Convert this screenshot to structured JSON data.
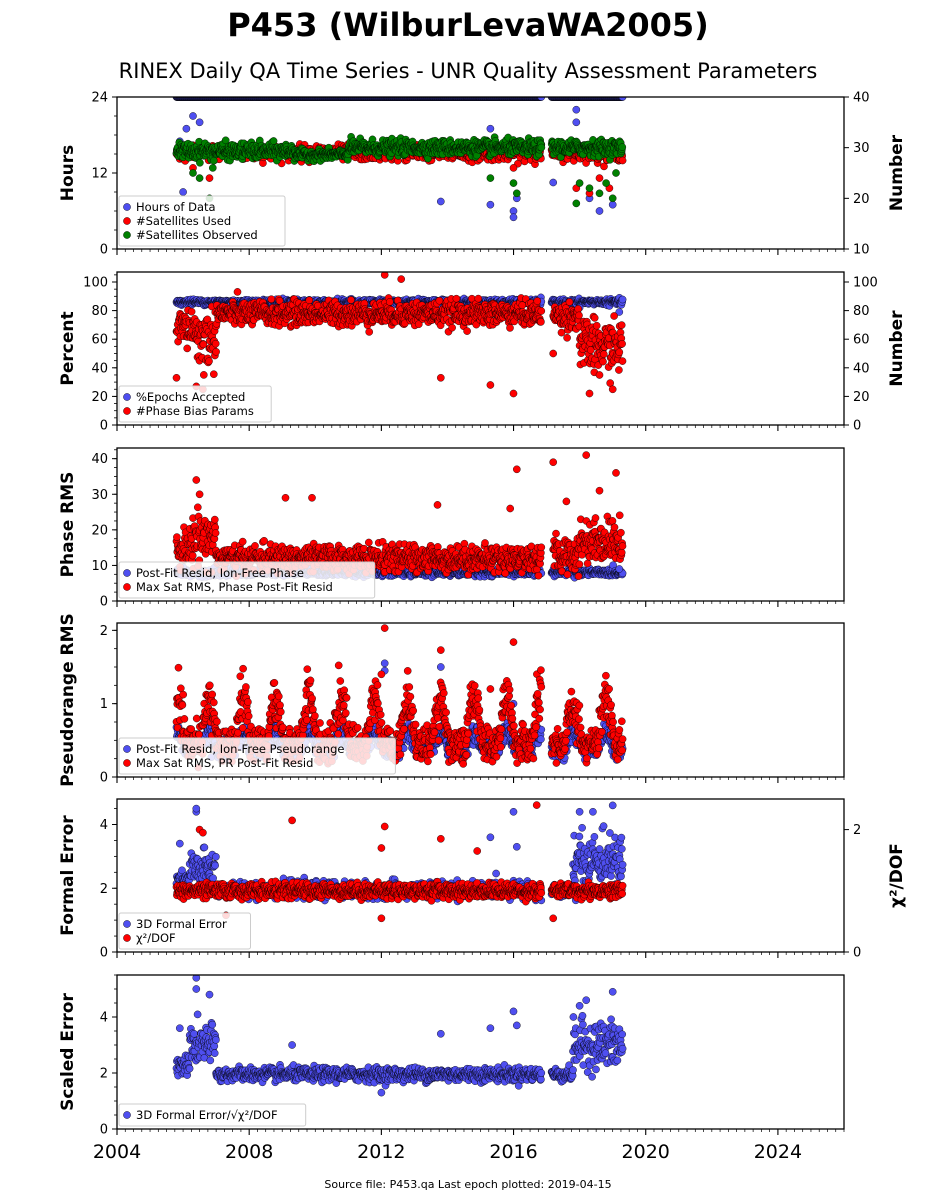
{
  "title": "P453 (WilburLevaWA2005)",
  "subtitle": "RINEX Daily QA Time Series - UNR Quality Assessment Parameters",
  "footer": "Source file: P453.qa Last epoch plotted: 2019-04-15",
  "colors": {
    "blue": "#4f4ff0",
    "red": "#ff0000",
    "green": "#008000"
  },
  "chart_data": [
    {
      "type": "scatter",
      "ylabel": "Hours",
      "ylabel_right": "Number",
      "xlim": [
        2004,
        2026
      ],
      "ylim": [
        0,
        24
      ],
      "yticks": [
        "0",
        "12",
        "24"
      ],
      "ylim_right": [
        10,
        40
      ],
      "yticks_right": [
        "10",
        "20",
        "30",
        "40"
      ],
      "legend_placement": "lower-left",
      "series": [
        {
          "name": "Hours of Data",
          "color": "blue",
          "axis": "left",
          "segments": [
            [
              2005.8,
              2019.3,
              24,
              0
            ]
          ],
          "outliers": [
            [
              2005.9,
              17
            ],
            [
              2006.1,
              19
            ],
            [
              2006.5,
              20
            ],
            [
              2006.6,
              15
            ],
            [
              2013.8,
              7.5
            ],
            [
              2015.3,
              7
            ],
            [
              2015.3,
              19
            ],
            [
              2016.0,
              6
            ],
            [
              2016.0,
              5
            ],
            [
              2016.1,
              8
            ],
            [
              2017.2,
              10.5
            ],
            [
              2017.9,
              20
            ],
            [
              2017.9,
              22
            ],
            [
              2018.3,
              8
            ],
            [
              2018.6,
              6
            ],
            [
              2018.8,
              15
            ],
            [
              2019.0,
              7
            ],
            [
              2019.2,
              14
            ],
            [
              2006.0,
              9
            ],
            [
              2006.3,
              21
            ]
          ]
        },
        {
          "name": "#Satellites Used",
          "color": "red",
          "axis": "right",
          "segments": [
            [
              2005.8,
              2019.3,
              29,
              1.2
            ]
          ],
          "outliers": [
            [
              2006.3,
              26
            ],
            [
              2006.8,
              24
            ],
            [
              2016.0,
              26
            ],
            [
              2017.9,
              22
            ],
            [
              2018.3,
              21
            ],
            [
              2018.6,
              24
            ],
            [
              2018.9,
              22
            ]
          ]
        },
        {
          "name": "#Satellites Observed",
          "color": "green",
          "axis": "right",
          "segments": [
            [
              2005.8,
              2009.4,
              29.3,
              1.3
            ],
            [
              2009.4,
              2011.0,
              28.6,
              0.8
            ],
            [
              2011.0,
              2019.3,
              30.0,
              1.2
            ]
          ],
          "outliers": [
            [
              2006.3,
              25
            ],
            [
              2006.5,
              24
            ],
            [
              2006.8,
              20
            ],
            [
              2006.9,
              26
            ],
            [
              2015.3,
              24
            ],
            [
              2016.0,
              23
            ],
            [
              2016.1,
              21
            ],
            [
              2017.9,
              19
            ],
            [
              2018.0,
              23
            ],
            [
              2018.3,
              22
            ],
            [
              2018.6,
              21
            ],
            [
              2018.8,
              23
            ],
            [
              2019.0,
              20
            ],
            [
              2019.1,
              25
            ]
          ]
        }
      ]
    },
    {
      "type": "scatter",
      "ylabel": "Percent",
      "ylabel_right": "Number",
      "xlim": [
        2004,
        2026
      ],
      "ylim": [
        0,
        107
      ],
      "yticks": [
        "0",
        "20",
        "40",
        "60",
        "80",
        "100"
      ],
      "ylim_right": [
        0,
        107
      ],
      "yticks_right": [
        "0",
        "20",
        "40",
        "60",
        "80",
        "100"
      ],
      "legend_placement": "lower-left",
      "series": [
        {
          "name": "%Epochs Accepted",
          "color": "blue",
          "axis": "left",
          "segments": [
            [
              2005.8,
              2019.3,
              86,
              1.5
            ]
          ],
          "outliers": [
            [
              2019.2,
              79
            ],
            [
              2018.0,
              82
            ]
          ]
        },
        {
          "name": "#Phase Bias Params",
          "color": "red",
          "axis": "right",
          "segments": [
            [
              2005.8,
              2006.4,
              68,
              12
            ],
            [
              2006.4,
              2007.0,
              60,
              18
            ],
            [
              2007.0,
              2017.0,
              78,
              7
            ],
            [
              2017.2,
              2018.0,
              76,
              8
            ],
            [
              2018.0,
              2019.3,
              55,
              15
            ]
          ],
          "outliers": [
            [
              2012.1,
              105
            ],
            [
              2012.6,
              102
            ],
            [
              2013.8,
              33
            ],
            [
              2015.3,
              28
            ],
            [
              2016.0,
              22
            ],
            [
              2017.2,
              50
            ],
            [
              2018.3,
              22
            ],
            [
              2018.6,
              35
            ],
            [
              2019.0,
              25
            ],
            [
              2005.8,
              33
            ],
            [
              2006.4,
              27
            ],
            [
              2006.6,
              25
            ]
          ]
        }
      ]
    },
    {
      "type": "scatter",
      "ylabel": "Phase RMS",
      "xlim": [
        2004,
        2026
      ],
      "ylim": [
        0,
        43
      ],
      "yticks": [
        "0",
        "10",
        "20",
        "30",
        "40"
      ],
      "legend_placement": "lower-left",
      "series": [
        {
          "name": "Post-Fit Resid, Ion-Free Phase",
          "color": "blue",
          "axis": "left",
          "segments": [
            [
              2005.8,
              2019.3,
              8,
              0.8
            ]
          ],
          "outliers": [
            [
              2006.0,
              9.5
            ],
            [
              2019.2,
              9
            ]
          ]
        },
        {
          "name": "Max Sat RMS, Phase Post-Fit Resid",
          "color": "red",
          "axis": "left",
          "segments": [
            [
              2005.8,
              2006.3,
              15,
              4
            ],
            [
              2006.3,
              2007.0,
              18,
              6
            ],
            [
              2007.0,
              2017.0,
              12,
              3
            ],
            [
              2017.2,
              2018.0,
              13,
              4
            ],
            [
              2018.0,
              2019.3,
              17,
              5
            ]
          ],
          "outliers": [
            [
              2006.4,
              34
            ],
            [
              2006.5,
              30
            ],
            [
              2009.1,
              29
            ],
            [
              2009.9,
              29
            ],
            [
              2016.1,
              37
            ],
            [
              2017.2,
              39
            ],
            [
              2017.6,
              28
            ],
            [
              2018.2,
              41
            ],
            [
              2018.6,
              31
            ],
            [
              2019.1,
              36
            ],
            [
              2013.7,
              27
            ],
            [
              2015.9,
              26
            ]
          ]
        }
      ]
    },
    {
      "type": "scatter",
      "ylabel": "Pseudorange RMS",
      "xlim": [
        2004,
        2026
      ],
      "ylim": [
        0,
        2.1
      ],
      "yticks": [
        "0",
        "1",
        "2"
      ],
      "legend_placement": "lower-left",
      "series": [
        {
          "name": "Post-Fit Resid, Ion-Free Pseudorange",
          "color": "blue",
          "axis": "left",
          "seasonal": {
            "start": 2005.8,
            "end": 2019.3,
            "base": 0.38,
            "amp": 0.28,
            "phase": 0.55,
            "noise": 0.06
          },
          "outliers": [
            [
              2012.1,
              1.55
            ],
            [
              2012.1,
              1.45
            ],
            [
              2013.8,
              1.5
            ],
            [
              2016.0,
              1.0
            ]
          ]
        },
        {
          "name": "Max Sat RMS, PR Post-Fit Resid",
          "color": "red",
          "axis": "left",
          "seasonal": {
            "start": 2005.8,
            "end": 2019.3,
            "base": 0.45,
            "amp": 0.75,
            "phase": 0.55,
            "noise": 0.12
          },
          "outliers": [
            [
              2012.1,
              2.03
            ],
            [
              2012.0,
              1.4
            ],
            [
              2013.8,
              1.73
            ],
            [
              2016.0,
              1.84
            ],
            [
              2015.3,
              1.2
            ]
          ]
        }
      ]
    },
    {
      "type": "scatter",
      "ylabel": "Formal Error",
      "ylabel_right": "χ²/DOF",
      "xlim": [
        2004,
        2026
      ],
      "ylim": [
        0,
        4.8
      ],
      "yticks": [
        "0",
        "2",
        "4"
      ],
      "ylim_right": [
        0,
        2.5
      ],
      "yticks_right": [
        "0",
        "2"
      ],
      "legend_placement": "lower-left",
      "series": [
        {
          "name": "3D Formal Error",
          "color": "blue",
          "axis": "left",
          "segments": [
            [
              2005.8,
              2006.2,
              2.2,
              0.3
            ],
            [
              2006.2,
              2007.0,
              2.6,
              0.5
            ],
            [
              2007.0,
              2017.8,
              1.95,
              0.2
            ],
            [
              2017.8,
              2019.3,
              2.8,
              0.7
            ]
          ],
          "outliers": [
            [
              2006.4,
              4.4
            ],
            [
              2006.4,
              4.5
            ],
            [
              2015.3,
              3.6
            ],
            [
              2016.0,
              4.4
            ],
            [
              2016.1,
              3.3
            ],
            [
              2018.0,
              4.4
            ],
            [
              2018.4,
              4.4
            ],
            [
              2019.0,
              4.6
            ],
            [
              2005.9,
              3.4
            ]
          ]
        },
        {
          "name": "χ²/DOF",
          "color": "red",
          "axis": "right",
          "segments": [
            [
              2005.8,
              2019.3,
              1.0,
              0.1
            ]
          ],
          "outliers": [
            [
              2009.3,
              2.15
            ],
            [
              2012.1,
              2.05
            ],
            [
              2013.8,
              1.85
            ],
            [
              2016.7,
              2.4
            ],
            [
              2006.5,
              2.0
            ],
            [
              2006.6,
              1.95
            ],
            [
              2012.0,
              1.7
            ],
            [
              2014.9,
              1.65
            ],
            [
              2007.3,
              0.6
            ],
            [
              2012.0,
              0.55
            ],
            [
              2017.2,
              0.55
            ]
          ]
        }
      ]
    },
    {
      "type": "scatter",
      "ylabel": "Scaled Error",
      "xlim": [
        2004,
        2026
      ],
      "ylim": [
        0,
        5.5
      ],
      "yticks": [
        "0",
        "2",
        "4"
      ],
      "legend_placement": "lower-left",
      "series": [
        {
          "name": "3D Formal Error/√χ²/DOF",
          "color": "blue",
          "axis": "left",
          "segments": [
            [
              2005.8,
              2006.2,
              2.3,
              0.3
            ],
            [
              2006.2,
              2007.0,
              3.0,
              0.6
            ],
            [
              2007.0,
              2017.8,
              1.95,
              0.2
            ],
            [
              2017.8,
              2019.3,
              3.0,
              0.7
            ]
          ],
          "outliers": [
            [
              2006.4,
              5.4
            ],
            [
              2006.4,
              5.0
            ],
            [
              2006.8,
              4.8
            ],
            [
              2005.9,
              3.6
            ],
            [
              2009.3,
              3.0
            ],
            [
              2013.8,
              3.4
            ],
            [
              2015.3,
              3.6
            ],
            [
              2016.0,
              4.2
            ],
            [
              2016.1,
              3.7
            ],
            [
              2018.0,
              4.4
            ],
            [
              2018.2,
              4.6
            ],
            [
              2019.0,
              4.9
            ],
            [
              2012.0,
              1.3
            ]
          ]
        }
      ]
    }
  ],
  "x_axis": {
    "ticks": [
      "2004",
      "2008",
      "2012",
      "2016",
      "2020",
      "2024"
    ]
  }
}
